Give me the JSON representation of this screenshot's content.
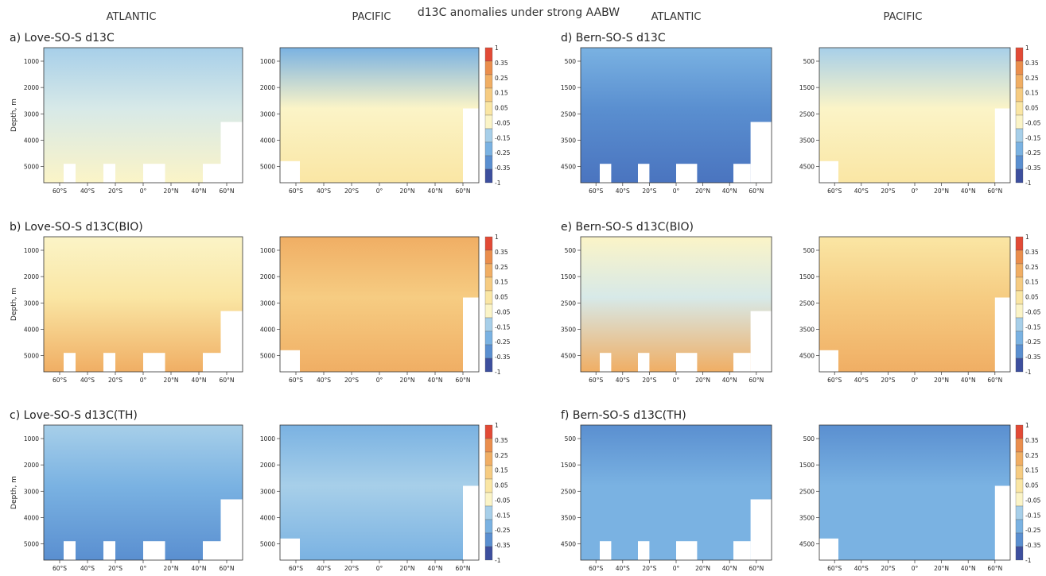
{
  "title": "d13C anomalies under strong AABW",
  "column_headers": [
    {
      "key": "left_atlantic",
      "label": "ATLANTIC"
    },
    {
      "key": "left_pacific",
      "label": "PACIFIC"
    },
    {
      "key": "right_atlantic",
      "label": "ATLANTIC"
    },
    {
      "key": "right_pacific",
      "label": "PACIFIC"
    }
  ],
  "colors": {
    "colorbar": [
      "#3d4f9e",
      "#4a74bf",
      "#5a8fd0",
      "#7ab2e2",
      "#a7cfe9",
      "#d7e9e8",
      "#fbf4c7",
      "#fae6a4",
      "#f6cc82",
      "#f0ae64",
      "#ea8e4d",
      "#e24a36"
    ],
    "blank": "#ffffff"
  },
  "chart_data": {
    "type": "heatmap",
    "colorbar_levels": [
      "-1",
      "-0.35",
      "-0.25",
      "-0.15",
      "-0.05",
      "0.05",
      "0.15",
      "0.25",
      "0.35",
      "1"
    ],
    "x_tick_labels": [
      "60°S",
      "40°S",
      "20°S",
      "0°",
      "20°N",
      "40°N",
      "60°N"
    ],
    "panels": [
      {
        "id": "a",
        "label": "a) Love-SO-S d13C",
        "model": "Love",
        "basins": [
          "ATLANTIC",
          "PACIFIC"
        ],
        "ylabel": "Depth, m",
        "yticks": [
          "1000",
          "2000",
          "3000",
          "4000",
          "5000"
        ],
        "mean_level": {
          "ATLANTIC": "-0.05 to -0.15",
          "PACIFIC": "0.05 to 0.15"
        }
      },
      {
        "id": "b",
        "label": "b) Love-SO-S d13C(BIO)",
        "model": "Love",
        "basins": [
          "ATLANTIC",
          "PACIFIC"
        ],
        "ylabel": "Depth, m",
        "yticks": [
          "1000",
          "2000",
          "3000",
          "4000",
          "5000"
        ],
        "mean_level": {
          "ATLANTIC": "0.05 to 0.25",
          "PACIFIC": "0.25 to 0.35"
        }
      },
      {
        "id": "c",
        "label": "c) Love-SO-S d13C(TH)",
        "model": "Love",
        "basins": [
          "ATLANTIC",
          "PACIFIC"
        ],
        "ylabel": "Depth, m",
        "yticks": [
          "1000",
          "2000",
          "3000",
          "4000",
          "5000"
        ],
        "mean_level": {
          "ATLANTIC": "-0.05 to -0.25",
          "PACIFIC": "-0.05 to -0.25"
        }
      },
      {
        "id": "d",
        "label": "d) Bern-SO-S d13C",
        "model": "Bern",
        "basins": [
          "ATLANTIC",
          "PACIFIC"
        ],
        "ylabel": "",
        "yticks": [
          "500",
          "1500",
          "2500",
          "3500",
          "4500"
        ],
        "mean_level": {
          "ATLANTIC": "-0.15 to -0.35",
          "PACIFIC": "0.05 to 0.25"
        }
      },
      {
        "id": "e",
        "label": "e) Bern-SO-S d13C(BIO)",
        "model": "Bern",
        "basins": [
          "ATLANTIC",
          "PACIFIC"
        ],
        "ylabel": "",
        "yticks": [
          "500",
          "1500",
          "2500",
          "3500",
          "4500"
        ],
        "mean_level": {
          "ATLANTIC": "-0.05 to 0.35",
          "PACIFIC": "0.15 to 0.35"
        }
      },
      {
        "id": "f",
        "label": "f) Bern-SO-S d13C(TH)",
        "model": "Bern",
        "basins": [
          "ATLANTIC",
          "PACIFIC"
        ],
        "ylabel": "",
        "yticks": [
          "500",
          "1500",
          "2500",
          "3500",
          "4500"
        ],
        "mean_level": {
          "ATLANTIC": "-0.15 to -0.25",
          "PACIFIC": "-0.05 to -0.25"
        }
      }
    ]
  }
}
